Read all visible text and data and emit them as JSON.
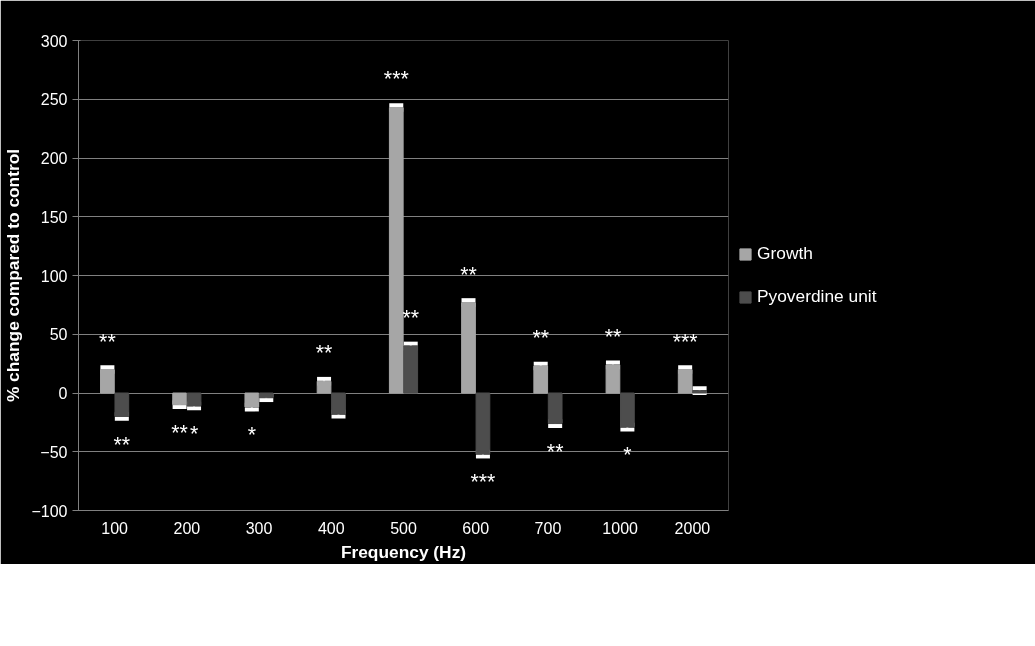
{
  "chart_data": {
    "type": "bar",
    "xlabel": "Frequency (Hz)",
    "ylabel": "% change compared to control",
    "categories": [
      "100",
      "200",
      "300",
      "400",
      "500",
      "600",
      "700",
      "1000",
      "2000"
    ],
    "series": [
      {
        "name": "Growth",
        "color": "#a6a6a6",
        "values": [
          20,
          -10,
          -12,
          10,
          243,
          77,
          23,
          24,
          20
        ],
        "errors": [
          2,
          2,
          2,
          2,
          2,
          2,
          2,
          2,
          2
        ]
      },
      {
        "name": "Pyoverdine unit",
        "color": "#4d4d4d",
        "values": [
          -20,
          -11,
          -4,
          -18,
          40,
          -52,
          -26,
          -29,
          2
        ],
        "errors": [
          2,
          2,
          2,
          2,
          2,
          2,
          2,
          2,
          2
        ]
      }
    ],
    "ylim": [
      -100,
      300
    ],
    "yticks": [
      -100,
      -50,
      0,
      50,
      100,
      150,
      200,
      250,
      300
    ],
    "grid": "y",
    "legend": "right",
    "annotations": [
      {
        "text": "**",
        "x": "100",
        "y": 20
      },
      {
        "text": "**",
        "x": "100",
        "y": -20
      },
      {
        "text": "**",
        "x": "200",
        "y": -10
      },
      {
        "text": "*",
        "x": "200",
        "y": -11
      },
      {
        "text": "*",
        "x": "300",
        "y": -12
      },
      {
        "text": "**",
        "x": "400",
        "y": 10
      },
      {
        "text": "***",
        "x": "500",
        "y": 243
      },
      {
        "text": "**",
        "x": "500",
        "y": 40
      },
      {
        "text": "**",
        "x": "600",
        "y": 77
      },
      {
        "text": "***",
        "x": "600",
        "y": -52
      },
      {
        "text": "**",
        "x": "700",
        "y": 23
      },
      {
        "text": "**",
        "x": "700",
        "y": -26
      },
      {
        "text": "**",
        "x": "1000",
        "y": 24
      },
      {
        "text": "*",
        "x": "1000",
        "y": -29
      },
      {
        "text": "***",
        "x": "2000",
        "y": 20
      }
    ]
  }
}
